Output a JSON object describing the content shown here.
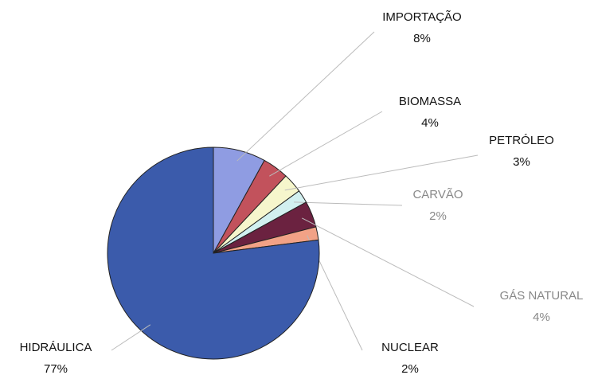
{
  "chart_data": {
    "type": "pie",
    "categories": [
      "IMPORTAÇÃO",
      "BIOMASSA",
      "PETRÓLEO",
      "CARVÃO",
      "GÁS NATURAL",
      "NUCLEAR",
      "HIDRÁULICA"
    ],
    "values": [
      8,
      4,
      3,
      2,
      4,
      2,
      77
    ],
    "value_labels": [
      "8%",
      "4%",
      "3%",
      "2%",
      "4%",
      "2%",
      "77%"
    ],
    "colors": [
      "#8f9ce2",
      "#c2525c",
      "#f6f6cc",
      "#d2f0f0",
      "#6b2240",
      "#f2a286",
      "#3b5bab"
    ],
    "start_angle": 0,
    "direction": "clockwise"
  }
}
